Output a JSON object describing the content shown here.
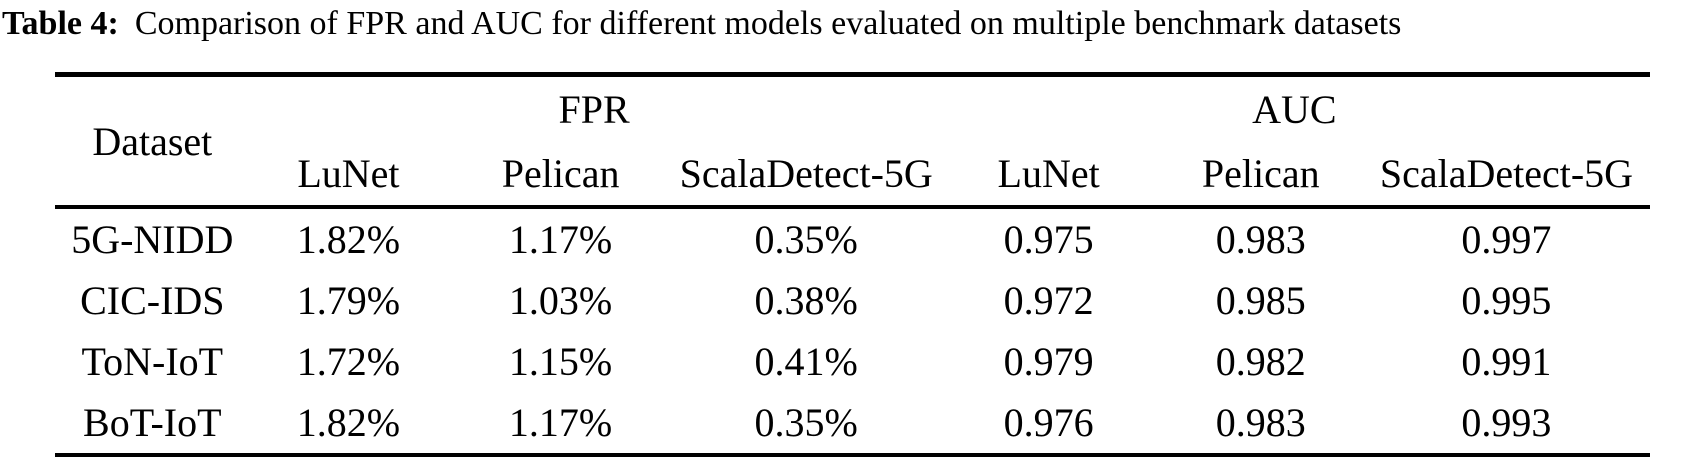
{
  "caption": {
    "label": "Table 4:",
    "text": "Comparison of FPR and AUC for different models evaluated on multiple benchmark datasets"
  },
  "table": {
    "corner_header": "Dataset",
    "groups": [
      {
        "label": "FPR",
        "models": [
          "LuNet",
          "Pelican",
          "ScalaDetect-5G"
        ]
      },
      {
        "label": "AUC",
        "models": [
          "LuNet",
          "Pelican",
          "ScalaDetect-5G"
        ]
      }
    ],
    "rows": [
      [
        "5G-NIDD",
        "1.82%",
        "1.17%",
        "0.35%",
        "0.975",
        "0.983",
        "0.997"
      ],
      [
        "CIC-IDS",
        "1.79%",
        "1.03%",
        "0.38%",
        "0.972",
        "0.985",
        "0.995"
      ],
      [
        "ToN-IoT",
        "1.72%",
        "1.15%",
        "0.41%",
        "0.979",
        "0.982",
        "0.991"
      ],
      [
        "BoT-IoT",
        "1.82%",
        "1.17%",
        "0.35%",
        "0.976",
        "0.983",
        "0.993"
      ]
    ],
    "text_color": "#000000",
    "rule_color": "#000000"
  }
}
